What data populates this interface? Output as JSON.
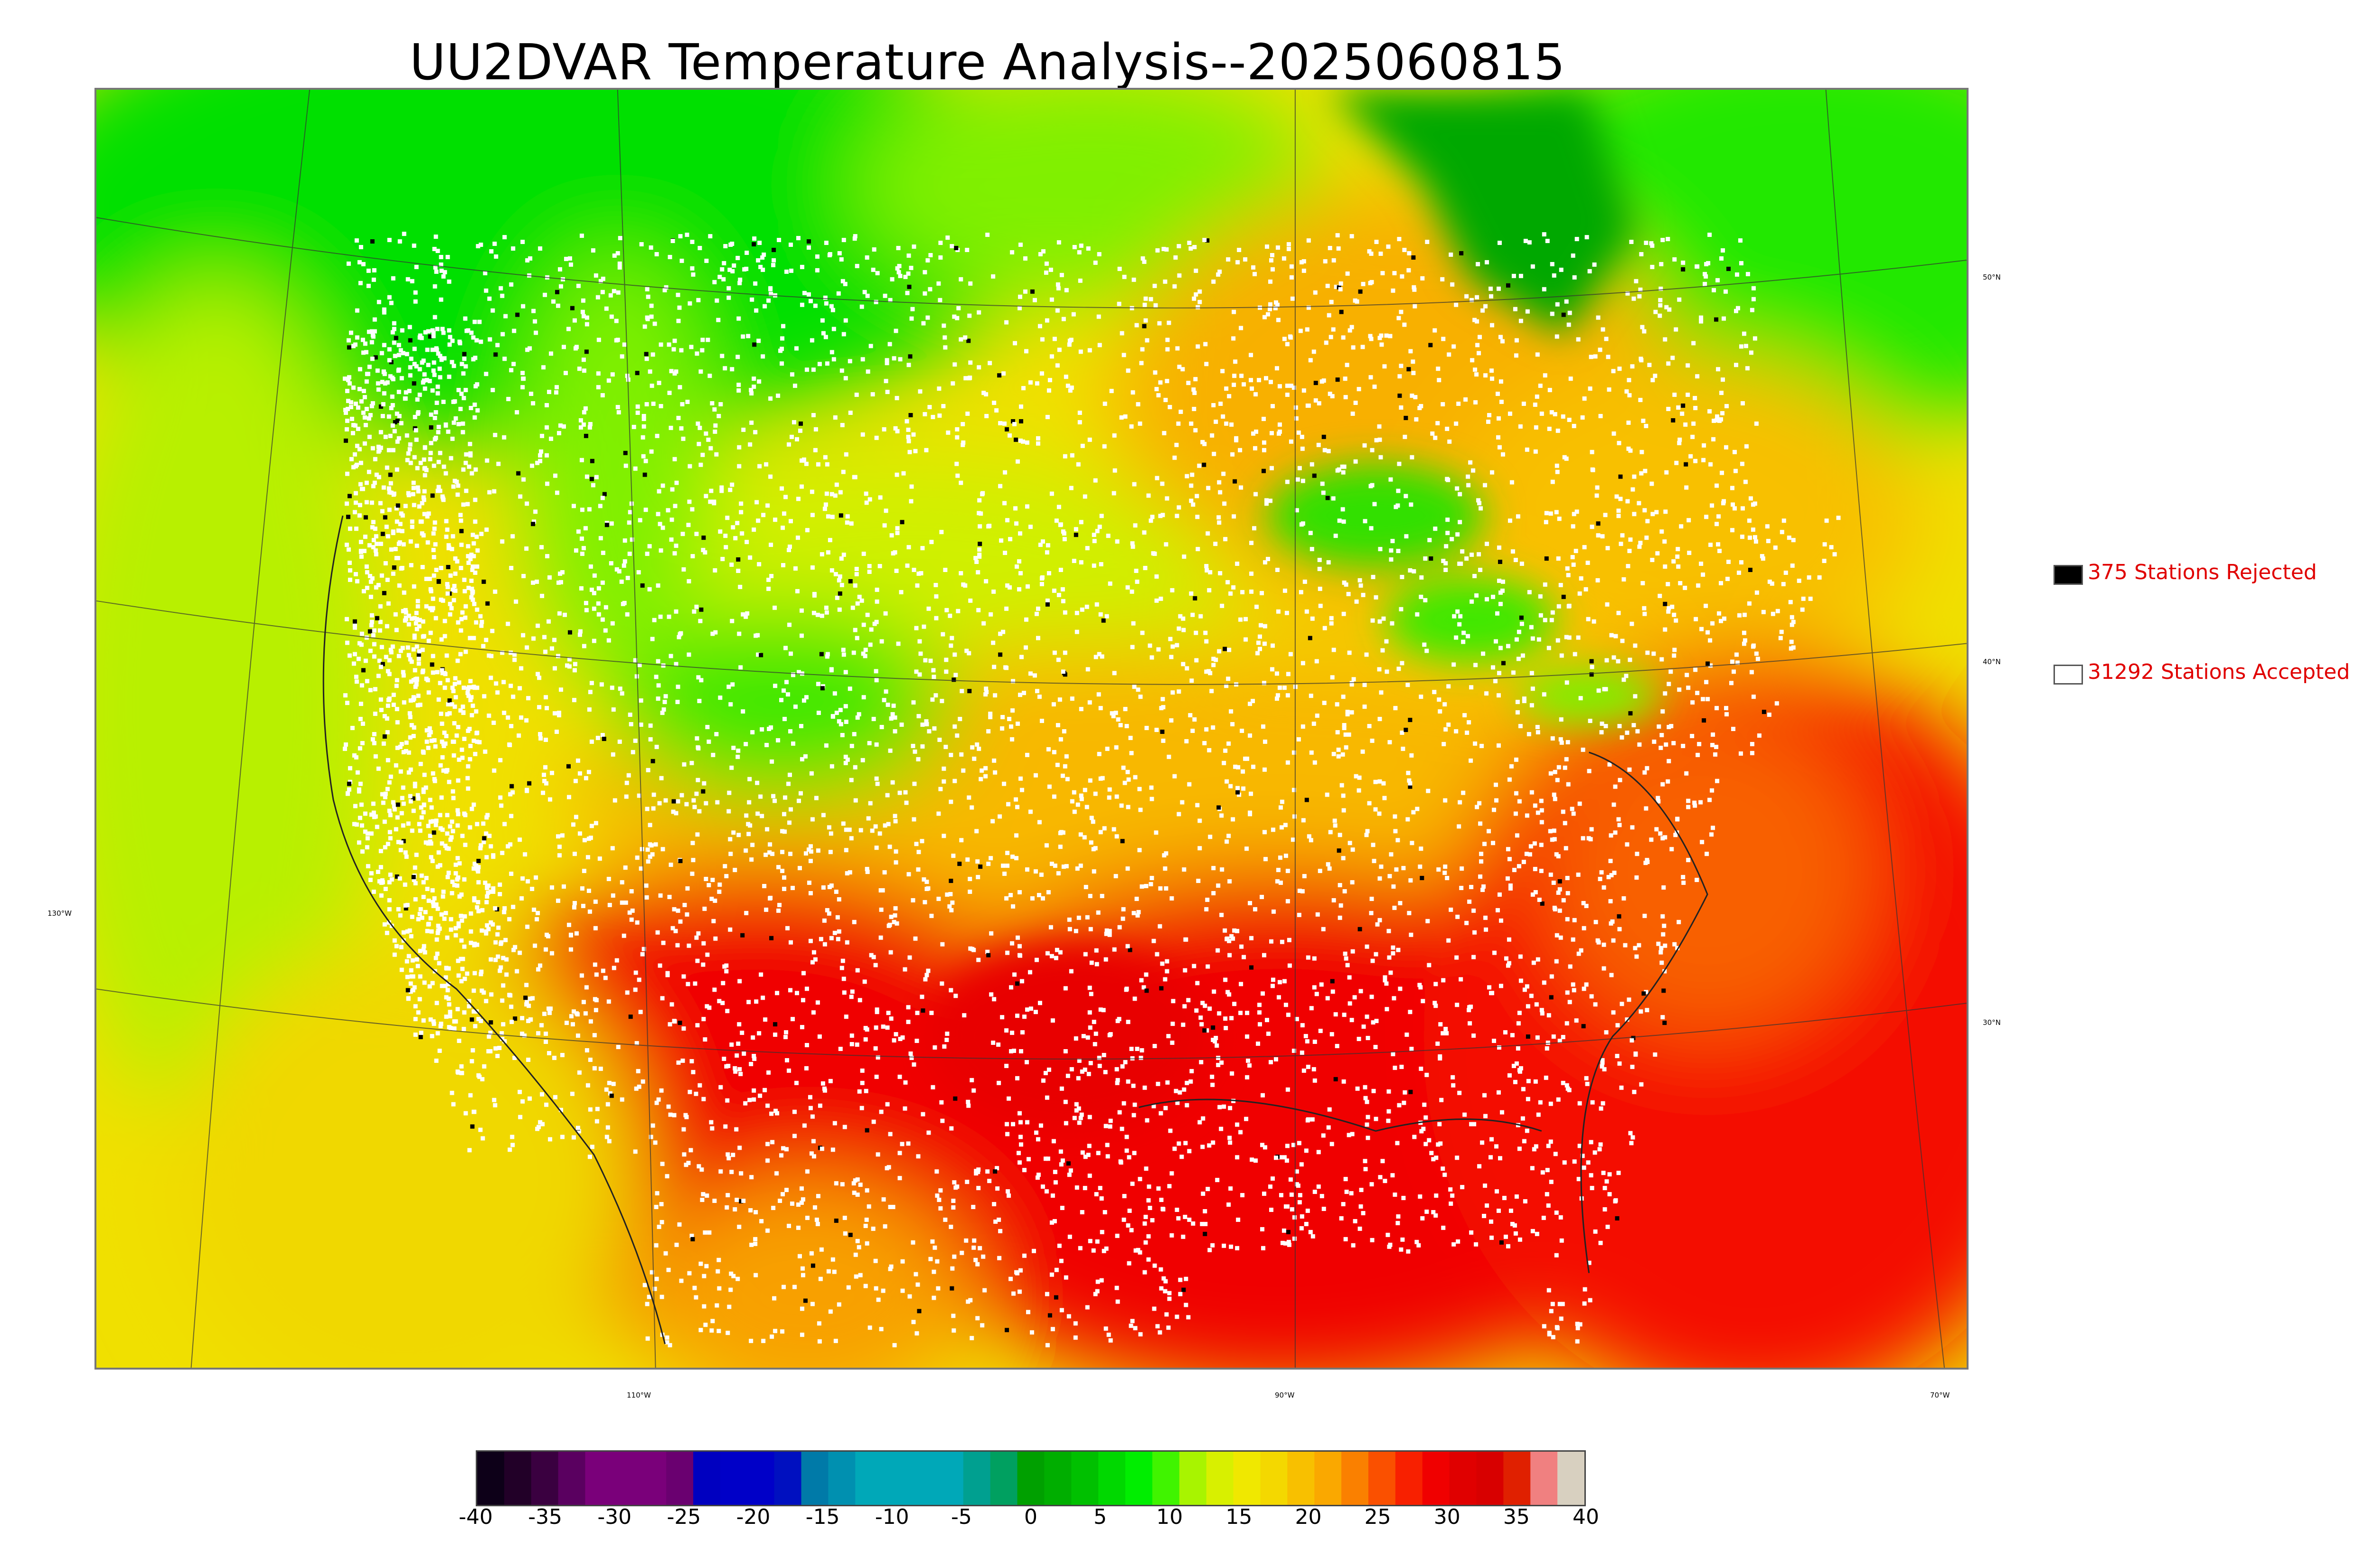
{
  "title": "UU2DVAR Temperature Analysis--2025060815",
  "legend": {
    "rejected": {
      "label": "375 Stations Rejected",
      "swatch_color": "#000000"
    },
    "accepted": {
      "label": "31292 Stations Accepted",
      "swatch_color": "#ffffff"
    }
  },
  "latitude_labels": [
    "50°N",
    "40°N",
    "30°N"
  ],
  "longitude_labels": [
    "130°W",
    "110°W",
    "90°W",
    "70°W"
  ],
  "colorbar": {
    "tick_labels": [
      "-40",
      "-35",
      "-30",
      "-25",
      "-20",
      "-15",
      "-10",
      "-5",
      "0",
      "5",
      "10",
      "15",
      "20",
      "25",
      "30",
      "35",
      "40"
    ],
    "min": -40,
    "max": 40,
    "colors": [
      "#0d0018",
      "#220028",
      "#3a0040",
      "#5a0060",
      "#7a007a",
      "#7a007a",
      "#7a007a",
      "#6a0070",
      "#0000c0",
      "#0000c8",
      "#0000c8",
      "#0010c0",
      "#007aa8",
      "#0090b0",
      "#00a8b8",
      "#00a8b8",
      "#00a8b8",
      "#00a8b8",
      "#00a090",
      "#00a060",
      "#00a000",
      "#00ae00",
      "#00c000",
      "#00d800",
      "#00ee00",
      "#40f400",
      "#a8f400",
      "#d8f000",
      "#f0e800",
      "#f4d800",
      "#f8c000",
      "#faa800",
      "#fa8000",
      "#fa5000",
      "#f82000",
      "#f00000",
      "#e00000",
      "#d80000",
      "#e02000",
      "#f08080",
      "#d8d0c0"
    ]
  },
  "field_colors": {
    "cold_green": "#00e000",
    "dark_green": "#00a800",
    "yellow_green": "#c8f000",
    "yellow": "#f0e000",
    "orange": "#f8a800",
    "red": "#f00000"
  }
}
